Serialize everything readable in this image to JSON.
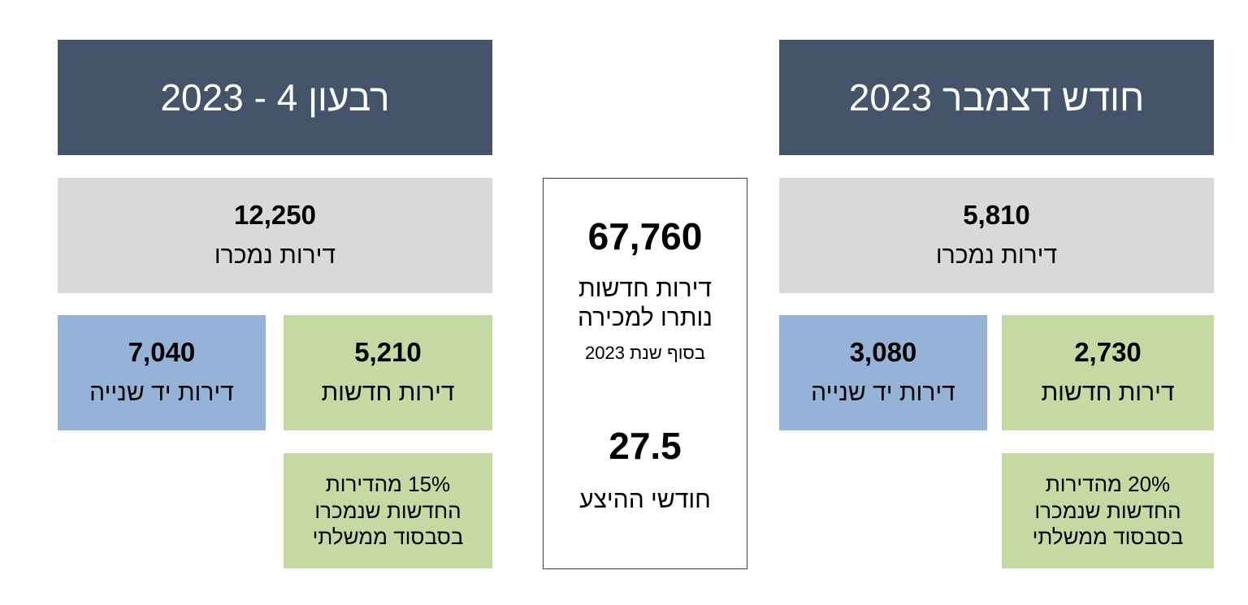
{
  "december": {
    "title": "חודש דצמבר 2023",
    "sold": {
      "value": "5,810",
      "label": "דירות נמכרו"
    },
    "new_apartments": {
      "value": "2,730",
      "label": "דירות חדשות"
    },
    "second_hand": {
      "value": "3,080",
      "label": "דירות יד שנייה"
    },
    "subsidy_note": "20% מהדירות החדשות שנמכרו בסבסוד ממשלתי"
  },
  "q4": {
    "title": "רבעון 4 - 2023",
    "sold": {
      "value": "12,250",
      "label": "דירות נמכרו"
    },
    "new_apartments": {
      "value": "5,210",
      "label": "דירות חדשות"
    },
    "second_hand": {
      "value": "7,040",
      "label": "דירות יד שנייה"
    },
    "subsidy_note": "15% מהדירות החדשות שנמכרו בסבסוד ממשלתי"
  },
  "inventory": {
    "value": "67,760",
    "label": "דירות חדשות נותרו למכירה",
    "sublabel": "בסוף שנת 2023",
    "months_value": "27.5",
    "months_label": "חודשי ההיצע"
  },
  "colors": {
    "header": "#44546a",
    "gray": "#d9d9d9",
    "green": "#c5d9a3",
    "blue": "#95b3d7"
  }
}
